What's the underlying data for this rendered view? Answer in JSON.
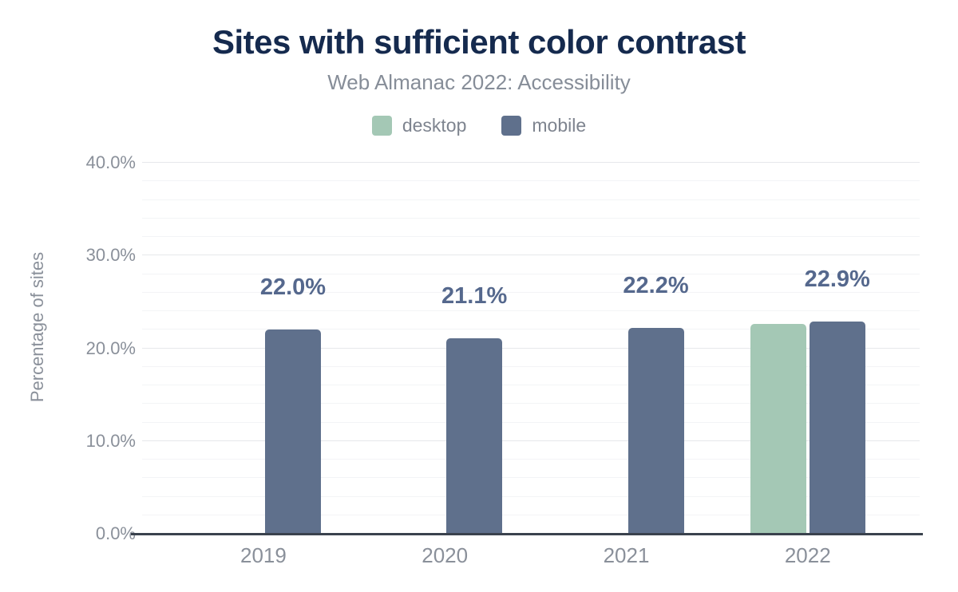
{
  "chart": {
    "title": "Sites with sufficient color contrast",
    "subtitle": "Web Almanac 2022: Accessibility",
    "y_axis_title": "Percentage of sites",
    "background_color": "#ffffff",
    "title_color": "#152a4e",
    "axis_line_color": "#3a424d"
  },
  "chart_data": {
    "type": "bar",
    "title": "Sites with sufficient color contrast",
    "subtitle": "Web Almanac 2022: Accessibility",
    "categories": [
      "2019",
      "2020",
      "2021",
      "2022"
    ],
    "series": [
      {
        "name": "desktop",
        "color": "#a4c8b5",
        "values": [
          null,
          null,
          null,
          22.6
        ],
        "data_labels": [
          null,
          null,
          null,
          null
        ]
      },
      {
        "name": "mobile",
        "color": "#5f708c",
        "values": [
          22.0,
          21.1,
          22.2,
          22.9
        ],
        "data_labels": [
          "22.0%",
          "21.1%",
          "22.2%",
          "22.9%"
        ]
      }
    ],
    "xlabel": "",
    "ylabel": "Percentage of sites",
    "ylim": [
      0,
      40
    ],
    "y_major_ticks": [
      0,
      10,
      20,
      30,
      40
    ],
    "y_tick_labels": [
      "0.0%",
      "10.0%",
      "20.0%",
      "30.0%",
      "40.0%"
    ],
    "y_minor_step": 2,
    "grid": true,
    "legend_position": "top",
    "data_label_color": "#55688d"
  }
}
